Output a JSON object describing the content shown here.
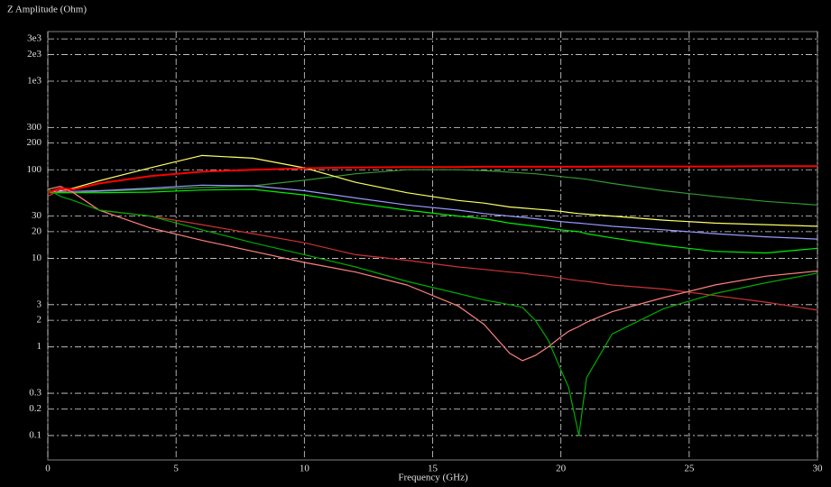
{
  "chart_data": {
    "type": "line",
    "title": "Z Amplitude (Ohm)",
    "x_label": "Frequency (GHz)",
    "x": [
      0,
      0.5,
      1,
      2,
      4,
      6,
      8,
      10,
      12,
      14,
      16,
      17,
      18,
      18.5,
      19,
      19.5,
      20,
      20.3,
      20.7,
      21,
      22,
      24,
      26,
      28,
      30
    ],
    "xlim": [
      0,
      30
    ],
    "xticks": [
      0,
      5,
      10,
      15,
      20,
      25,
      30
    ],
    "ylim": [
      0.053,
      3630
    ],
    "log_y": true,
    "grid": true,
    "yticks": [
      {
        "value": 3000,
        "label": "3e3"
      },
      {
        "value": 2000,
        "label": "2e3"
      },
      {
        "value": 1000,
        "label": "1e3"
      },
      300,
      200,
      100,
      30,
      20,
      10,
      3,
      2,
      1,
      0.3,
      0.2,
      0.1
    ],
    "series": [
      {
        "color": "#339933",
        "values": [
          55,
          55,
          55,
          57,
          60,
          63,
          66,
          76,
          90,
          100,
          100,
          98,
          94,
          92,
          90,
          87,
          84,
          82,
          80,
          78,
          70,
          58,
          50,
          44,
          40
        ]
      },
      {
        "color": "#ffff66",
        "values": [
          55,
          58,
          62,
          75,
          105,
          145,
          135,
          105,
          72,
          55,
          45,
          42,
          38,
          37,
          36,
          35,
          34,
          33,
          32,
          31.5,
          30,
          27,
          25,
          24,
          23
        ]
      },
      {
        "color": "#9999ff",
        "values": [
          55,
          57,
          57,
          58,
          62,
          67,
          66,
          58,
          48,
          40,
          35,
          32,
          30,
          29,
          28,
          27,
          26,
          25.5,
          25,
          24.5,
          23,
          21,
          19,
          17.5,
          16.5
        ]
      },
      {
        "color": "#00ee00",
        "values": [
          55,
          55,
          55,
          55,
          56,
          59,
          60,
          52,
          42,
          35,
          30,
          28,
          25,
          24,
          23,
          22,
          21,
          20.5,
          20,
          19,
          17,
          14,
          12,
          11.5,
          13
        ]
      },
      {
        "color": "#cc3333",
        "values": [
          50,
          60,
          55,
          35,
          30,
          24,
          19,
          15,
          11,
          9.5,
          8,
          7.5,
          7,
          6.8,
          6.5,
          6.3,
          6,
          5.8,
          5.6,
          5.5,
          5,
          4.5,
          3.8,
          3.2,
          2.6
        ]
      },
      {
        "color": "#ff8080",
        "values": [
          60,
          65,
          55,
          35,
          22,
          16,
          12,
          9,
          7,
          5,
          2.9,
          1.8,
          0.85,
          0.7,
          0.8,
          1,
          1.3,
          1.5,
          1.7,
          1.9,
          2.5,
          3.6,
          5,
          6.3,
          7.2
        ]
      },
      {
        "color": "#00aa00",
        "values": [
          60,
          50,
          45,
          35,
          30,
          21,
          15,
          11,
          8,
          5.5,
          4,
          3.4,
          3,
          2.8,
          2,
          1.2,
          0.55,
          0.35,
          0.1,
          0.45,
          1.4,
          2.7,
          4,
          5.3,
          6.8
        ]
      },
      {
        "color": "#ff0000",
        "values": [
          55,
          62,
          60,
          70,
          85,
          95,
          100,
          104,
          106,
          107,
          107,
          108,
          108,
          108,
          108,
          108,
          108,
          108,
          108,
          108,
          109,
          109,
          109,
          110,
          110
        ]
      }
    ]
  }
}
